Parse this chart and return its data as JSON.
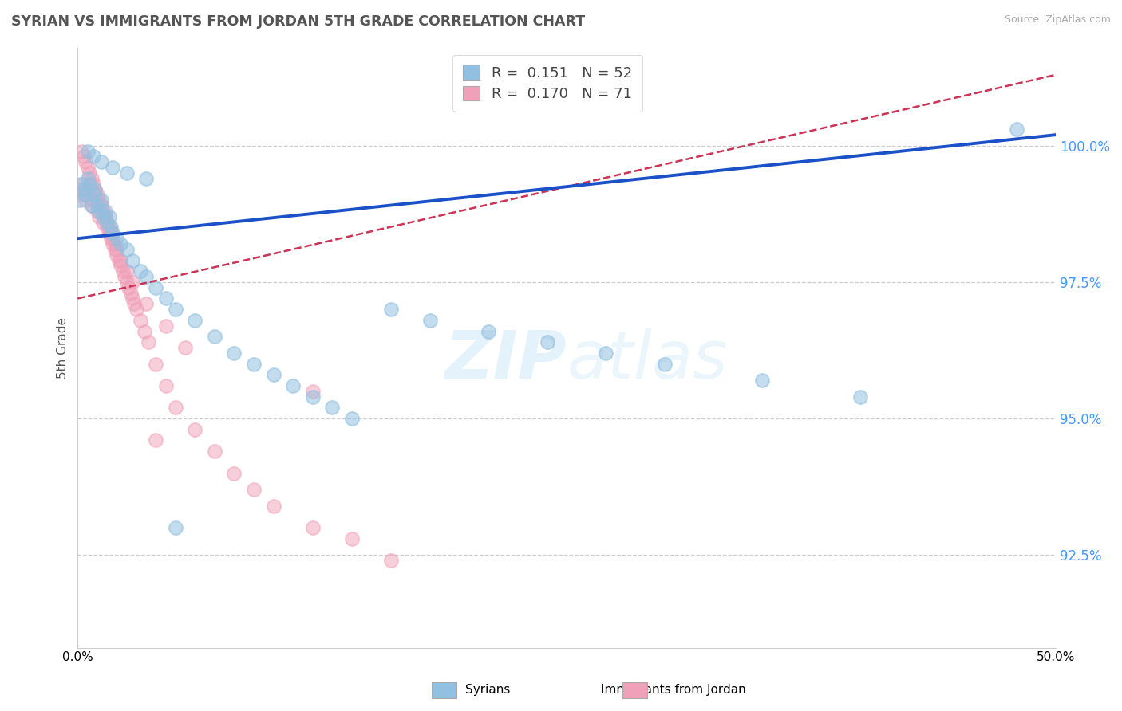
{
  "title": "SYRIAN VS IMMIGRANTS FROM JORDAN 5TH GRADE CORRELATION CHART",
  "source": "Source: ZipAtlas.com",
  "ylabel": "5th Grade",
  "ytick_labels": [
    "100.0%",
    "97.5%",
    "95.0%",
    "92.5%"
  ],
  "ytick_values": [
    1.0,
    0.975,
    0.95,
    0.925
  ],
  "xmin": 0.0,
  "xmax": 0.5,
  "ymin": 0.908,
  "ymax": 1.018,
  "legend_label1": "Syrians",
  "legend_label2": "Immigrants from Jordan",
  "blue_color": "#92c0e0",
  "pink_color": "#f0a0b8",
  "trend_blue_color": "#1a50c8",
  "trend_pink_color": "#cc3355",
  "blue_trend_x0": 0.0,
  "blue_trend_y0": 0.983,
  "blue_trend_x1": 0.5,
  "blue_trend_y1": 1.002,
  "pink_trend_x0": 0.0,
  "pink_trend_y0": 0.972,
  "pink_trend_x1": 0.5,
  "pink_trend_y1": 1.013,
  "syrian_x": [
    0.001,
    0.002,
    0.003,
    0.004,
    0.005,
    0.006,
    0.007,
    0.008,
    0.009,
    0.01,
    0.011,
    0.012,
    0.013,
    0.014,
    0.015,
    0.016,
    0.017,
    0.018,
    0.02,
    0.022,
    0.025,
    0.028,
    0.032,
    0.035,
    0.04,
    0.045,
    0.05,
    0.06,
    0.07,
    0.08,
    0.09,
    0.1,
    0.11,
    0.12,
    0.13,
    0.14,
    0.16,
    0.18,
    0.21,
    0.24,
    0.27,
    0.3,
    0.35,
    0.4,
    0.48,
    0.005,
    0.008,
    0.012,
    0.018,
    0.025,
    0.035,
    0.05
  ],
  "syrian_y": [
    0.99,
    0.993,
    0.992,
    0.991,
    0.994,
    0.993,
    0.989,
    0.991,
    0.992,
    0.989,
    0.988,
    0.99,
    0.987,
    0.988,
    0.986,
    0.987,
    0.985,
    0.984,
    0.983,
    0.982,
    0.981,
    0.979,
    0.977,
    0.976,
    0.974,
    0.972,
    0.97,
    0.968,
    0.965,
    0.962,
    0.96,
    0.958,
    0.956,
    0.954,
    0.952,
    0.95,
    0.97,
    0.968,
    0.966,
    0.964,
    0.962,
    0.96,
    0.957,
    0.954,
    1.003,
    0.999,
    0.998,
    0.997,
    0.996,
    0.995,
    0.994,
    0.93
  ],
  "jordan_x": [
    0.001,
    0.002,
    0.003,
    0.004,
    0.005,
    0.006,
    0.007,
    0.008,
    0.009,
    0.01,
    0.011,
    0.012,
    0.013,
    0.014,
    0.015,
    0.016,
    0.017,
    0.018,
    0.019,
    0.02,
    0.021,
    0.022,
    0.023,
    0.024,
    0.025,
    0.026,
    0.027,
    0.028,
    0.029,
    0.03,
    0.032,
    0.034,
    0.036,
    0.04,
    0.045,
    0.05,
    0.06,
    0.07,
    0.08,
    0.09,
    0.1,
    0.12,
    0.14,
    0.16,
    0.002,
    0.003,
    0.004,
    0.005,
    0.006,
    0.007,
    0.008,
    0.009,
    0.01,
    0.011,
    0.012,
    0.013,
    0.014,
    0.015,
    0.016,
    0.017,
    0.018,
    0.019,
    0.02,
    0.022,
    0.025,
    0.028,
    0.035,
    0.045,
    0.055,
    0.04,
    0.12
  ],
  "jordan_y": [
    0.992,
    0.993,
    0.991,
    0.99,
    0.992,
    0.993,
    0.989,
    0.99,
    0.991,
    0.988,
    0.987,
    0.989,
    0.986,
    0.987,
    0.985,
    0.984,
    0.983,
    0.982,
    0.981,
    0.98,
    0.979,
    0.978,
    0.977,
    0.976,
    0.975,
    0.974,
    0.973,
    0.972,
    0.971,
    0.97,
    0.968,
    0.966,
    0.964,
    0.96,
    0.956,
    0.952,
    0.948,
    0.944,
    0.94,
    0.937,
    0.934,
    0.93,
    0.928,
    0.924,
    0.999,
    0.998,
    0.997,
    0.996,
    0.995,
    0.994,
    0.993,
    0.992,
    0.991,
    0.99,
    0.989,
    0.988,
    0.987,
    0.986,
    0.985,
    0.984,
    0.983,
    0.982,
    0.981,
    0.979,
    0.977,
    0.975,
    0.971,
    0.967,
    0.963,
    0.946,
    0.955
  ]
}
